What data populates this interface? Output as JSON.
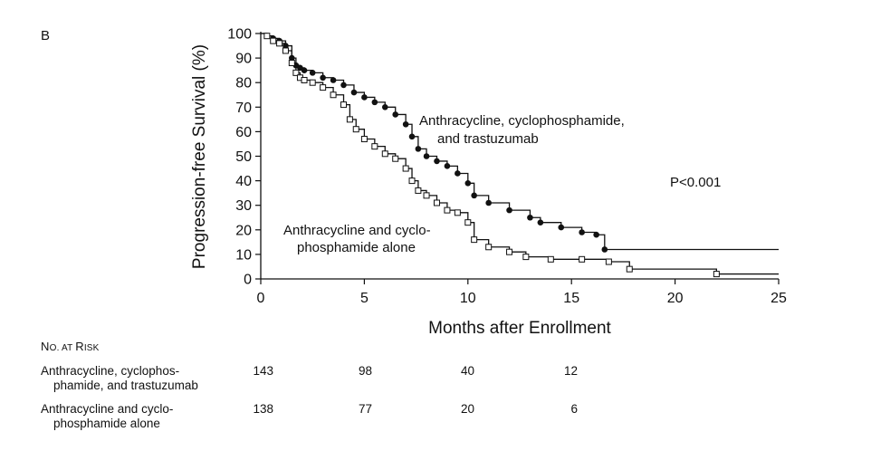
{
  "panel_label": "B",
  "chart_data": {
    "type": "line",
    "title": "",
    "xlabel": "Months after Enrollment",
    "ylabel": "Progression-free Survival (%)",
    "xlim": [
      0,
      25
    ],
    "ylim": [
      0,
      100
    ],
    "xticks": [
      0,
      5,
      10,
      15,
      20,
      25
    ],
    "yticks": [
      0,
      10,
      20,
      30,
      40,
      50,
      60,
      70,
      80,
      90,
      100
    ],
    "grid": false,
    "annotation": "P<0.001",
    "series": [
      {
        "name": "Anthracycline, cyclophosphamide, and trastuzumab",
        "label_lines": [
          "Anthracycline, cyclophosphamide,",
          "and trastuzumab"
        ],
        "marker": "filled-circle",
        "x": [
          0,
          0.3,
          0.6,
          0.9,
          1.2,
          1.5,
          1.7,
          1.9,
          2.1,
          2.5,
          3.0,
          3.5,
          4.0,
          4.5,
          5.0,
          5.5,
          6.0,
          6.5,
          7.0,
          7.3,
          7.6,
          8.0,
          8.5,
          9.0,
          9.5,
          10.0,
          10.3,
          11.0,
          12.0,
          13.0,
          13.5,
          14.5,
          15.5,
          16.2,
          16.6,
          25.0
        ],
        "y": [
          100,
          99,
          98,
          97,
          95,
          90,
          87,
          86,
          85,
          84,
          82,
          81,
          79,
          76,
          74,
          72,
          70,
          67,
          63,
          58,
          53,
          50,
          48,
          46,
          43,
          39,
          34,
          31,
          28,
          25,
          23,
          21,
          19,
          18,
          12,
          12
        ]
      },
      {
        "name": "Anthracycline and cyclophosphamide alone",
        "label_lines": [
          "Anthracycline and cyclo-",
          "phosphamide alone"
        ],
        "marker": "open-square",
        "x": [
          0,
          0.3,
          0.6,
          0.9,
          1.2,
          1.5,
          1.7,
          1.9,
          2.1,
          2.5,
          3.0,
          3.5,
          4.0,
          4.3,
          4.6,
          5.0,
          5.5,
          6.0,
          6.5,
          7.0,
          7.3,
          7.6,
          8.0,
          8.5,
          9.0,
          9.5,
          10.0,
          10.3,
          11.0,
          12.0,
          12.8,
          14.0,
          15.5,
          16.8,
          17.8,
          22.0,
          25.0
        ],
        "y": [
          100,
          99,
          97,
          96,
          93,
          88,
          84,
          82,
          81,
          80,
          78,
          75,
          71,
          65,
          61,
          57,
          54,
          51,
          49,
          45,
          40,
          36,
          34,
          31,
          28,
          27,
          23,
          16,
          13,
          11,
          9,
          8,
          8,
          7,
          4,
          2,
          2
        ]
      }
    ]
  },
  "risk_table": {
    "header_first": "N",
    "header_rest": "O. AT ",
    "header_risk_first": "R",
    "header_risk_rest": "ISK",
    "rows": [
      {
        "label_line1": "Anthracycline, cyclophos-",
        "label_line2": "phamide, and trastuzumab",
        "counts": [
          "143",
          "98",
          "40",
          "12"
        ]
      },
      {
        "label_line1": "Anthracycline and cyclo-",
        "label_line2": "phosphamide alone",
        "counts": [
          "138",
          "77",
          "20",
          "6"
        ]
      }
    ]
  }
}
